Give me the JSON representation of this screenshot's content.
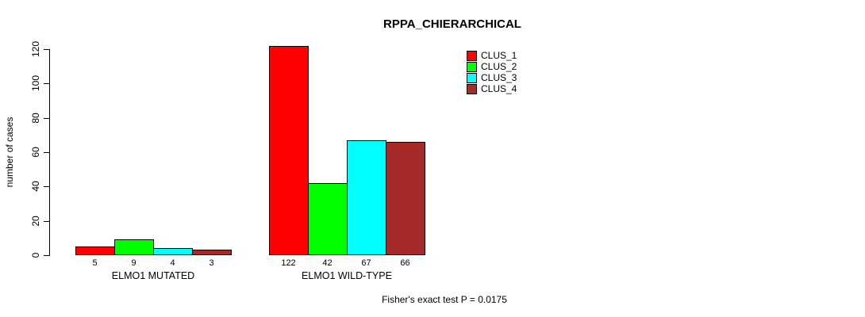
{
  "chart_data": {
    "type": "bar",
    "title": "RPPA_CHIERARCHICAL",
    "ylabel": "number of cases",
    "ylim": [
      0,
      120
    ],
    "yticks": [
      0,
      20,
      40,
      60,
      80,
      100,
      120
    ],
    "grid": false,
    "legend_position": "top-right",
    "series_names": [
      "CLUS_1",
      "CLUS_2",
      "CLUS_3",
      "CLUS_4"
    ],
    "series_colors": [
      "#ff0000",
      "#00ff00",
      "#00ffff",
      "#a52a2a"
    ],
    "groups": [
      {
        "label": "ELMO1 MUTATED",
        "values": [
          5,
          9,
          4,
          3
        ]
      },
      {
        "label": "ELMO1 WILD-TYPE",
        "values": [
          122,
          42,
          67,
          66
        ]
      }
    ],
    "footnote": "Fisher's exact test P = 0.0175"
  },
  "colors": {
    "background": "#ffffff",
    "axis": "#000000",
    "text": "#000000"
  }
}
